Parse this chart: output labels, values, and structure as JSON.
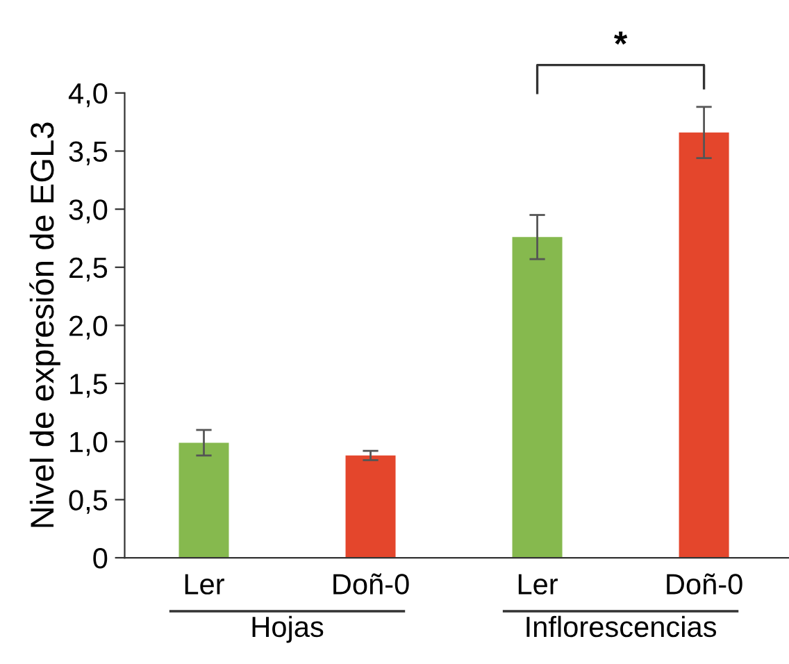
{
  "chart_data": {
    "type": "bar",
    "ylabel": "Nivel de expresión de EGL3",
    "categories": [
      "Ler",
      "Doñ-0",
      "Ler",
      "Doñ-0"
    ],
    "values": [
      0.99,
      0.88,
      2.76,
      3.66
    ],
    "errors": [
      0.11,
      0.04,
      0.19,
      0.22
    ],
    "colors": [
      "#86b94e",
      "#e4462c",
      "#86b94e",
      "#e4462c"
    ],
    "ylim": [
      0,
      4
    ],
    "yticks": [
      0,
      {
        "value": 0.5,
        "label": "0,5"
      },
      {
        "value": 1,
        "label": "1,0"
      },
      {
        "value": 1.5,
        "label": "1,5"
      },
      {
        "value": 2,
        "label": "2,0"
      },
      {
        "value": 2.5,
        "label": "2,5"
      },
      {
        "value": 3,
        "label": "3,0"
      },
      {
        "value": 3.5,
        "label": "3,5"
      },
      {
        "value": 4,
        "label": "4,0"
      }
    ],
    "annotations": [
      "*",
      "Hojas",
      "Inflorescencias"
    ],
    "grid": false,
    "legend": false
  }
}
